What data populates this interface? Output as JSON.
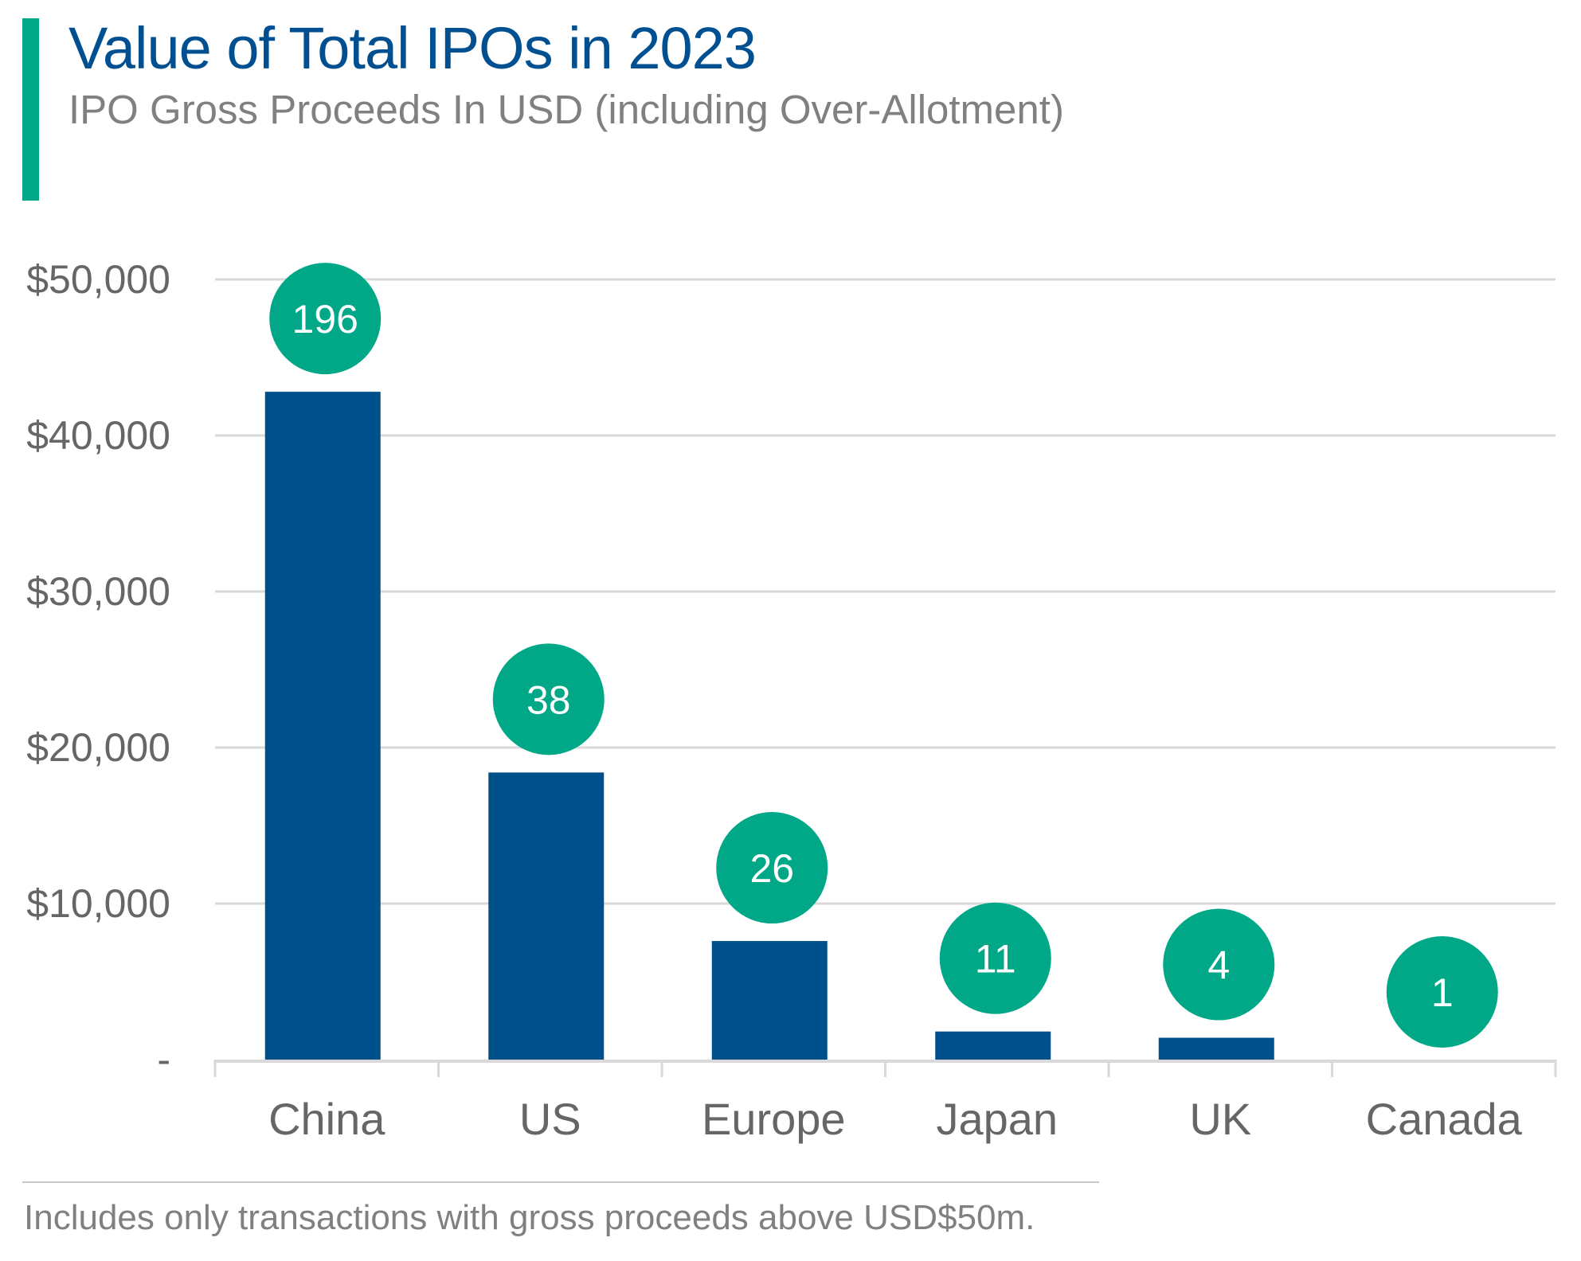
{
  "title": "Value of Total IPOs in 2023",
  "subtitle": "IPO Gross Proceeds In USD (including Over-Allotment)",
  "footer": "Includes only transactions with gross proceeds above USD$50m.",
  "colors": {
    "accent": "#00A887",
    "bar": "#00508C",
    "title": "#005091",
    "grid": "#D9D9D9",
    "text": "#666666"
  },
  "chart_data": {
    "type": "bar",
    "title": "Value of Total IPOs in 2023",
    "subtitle": "IPO Gross Proceeds In USD (including Over-Allotment)",
    "xlabel": "",
    "ylabel": "",
    "categories": [
      "China",
      "US",
      "Europe",
      "Japan",
      "UK",
      "Canada"
    ],
    "values": [
      42800,
      18400,
      7600,
      1800,
      1400,
      100
    ],
    "counts": [
      "196",
      "38",
      "26",
      "11",
      "4",
      "1"
    ],
    "ylim": [
      0,
      50000
    ],
    "yticks": [
      0,
      10000,
      20000,
      30000,
      40000,
      50000
    ],
    "ytick_labels": [
      "-",
      "$10,000",
      "$20,000",
      "$30,000",
      "$40,000",
      "$50,000"
    ],
    "grid": true,
    "legend": "none"
  }
}
